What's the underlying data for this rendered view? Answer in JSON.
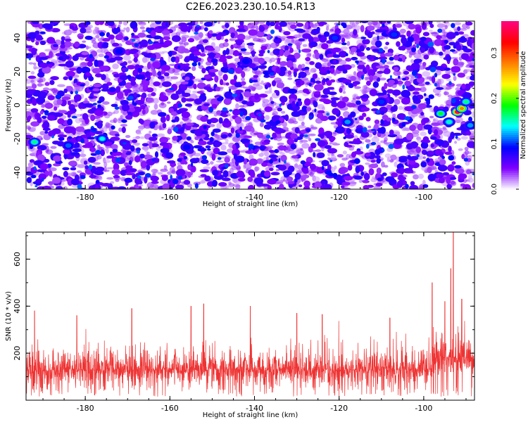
{
  "title": "C2E6.2023.230.10.54.R13",
  "chart_data": [
    {
      "type": "heatmap",
      "xlabel": "Height of straight line (km)",
      "ylabel": "Frequency (Hz)",
      "xlim": [
        -194,
        -88
      ],
      "ylim": [
        -50,
        50
      ],
      "xticks": [
        -180,
        -160,
        -140,
        -120,
        -100
      ],
      "yticks": [
        -40,
        -20,
        0,
        20,
        40
      ],
      "colorbar": {
        "label": "Normalized spectral amplitude",
        "range": [
          0.0,
          0.37
        ],
        "ticks": [
          0.0,
          0.1,
          0.2,
          0.3
        ],
        "colormap": [
          "#ffffff",
          "#8000ff",
          "#0000ff",
          "#00ffff",
          "#00ff00",
          "#ffff00",
          "#ff8000",
          "#ff0000",
          "#ff0080"
        ]
      },
      "background_level": 0.05,
      "hotspots": [
        {
          "x": -92,
          "y": -4,
          "value": 0.36
        },
        {
          "x": -91,
          "y": -2,
          "value": 0.28
        },
        {
          "x": -96,
          "y": -5,
          "value": 0.18
        },
        {
          "x": -94,
          "y": -10,
          "value": 0.15
        },
        {
          "x": -90,
          "y": 2,
          "value": 0.16
        },
        {
          "x": -89,
          "y": -12,
          "value": 0.12
        },
        {
          "x": -192,
          "y": -22,
          "value": 0.16
        },
        {
          "x": -176,
          "y": -20,
          "value": 0.14
        },
        {
          "x": -184,
          "y": -24,
          "value": 0.11
        },
        {
          "x": -118,
          "y": -10,
          "value": 0.12
        },
        {
          "x": -121,
          "y": 40,
          "value": 0.1
        },
        {
          "x": -172,
          "y": 32,
          "value": 0.09
        },
        {
          "x": -142,
          "y": 26,
          "value": 0.09
        },
        {
          "x": -156,
          "y": -25,
          "value": 0.09
        },
        {
          "x": -110,
          "y": 2,
          "value": 0.1
        },
        {
          "x": -107,
          "y": 42,
          "value": 0.1
        }
      ]
    },
    {
      "type": "line",
      "xlabel": "Height of straight line (km)",
      "ylabel": "SNR (10 * v/v)",
      "xlim": [
        -194,
        -88
      ],
      "ylim": [
        0,
        715
      ],
      "xticks": [
        -180,
        -160,
        -140,
        -120,
        -100
      ],
      "yticks": [
        200,
        400,
        600
      ],
      "color": "#ee3333",
      "baseline_mean": 130,
      "baseline_spread": 60,
      "peaks": [
        {
          "x": -93,
          "y": 715
        },
        {
          "x": -93.6,
          "y": 560
        },
        {
          "x": -98,
          "y": 500
        },
        {
          "x": -95,
          "y": 420
        },
        {
          "x": -91,
          "y": 430
        },
        {
          "x": -152,
          "y": 410
        },
        {
          "x": -155,
          "y": 400
        },
        {
          "x": -141,
          "y": 400
        },
        {
          "x": -169,
          "y": 390
        },
        {
          "x": -192,
          "y": 380
        },
        {
          "x": -130,
          "y": 370
        },
        {
          "x": -124,
          "y": 365
        },
        {
          "x": -182,
          "y": 360
        },
        {
          "x": -108,
          "y": 350
        }
      ]
    }
  ]
}
